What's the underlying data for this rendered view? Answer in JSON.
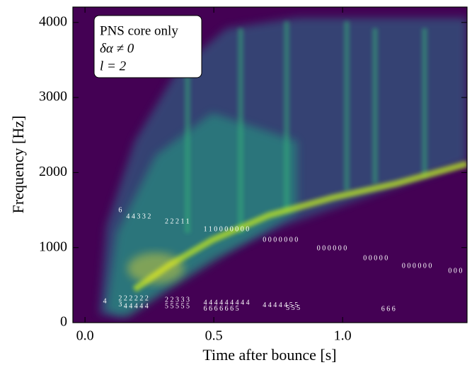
{
  "chart_data": {
    "type": "spectrogram",
    "x_label": "Time after bounce [s]",
    "y_label": "Frequency [Hz]",
    "annotation": [
      "PNS core only",
      "δα ≠ 0",
      "l = 2"
    ],
    "xlim": [
      -0.047,
      1.483
    ],
    "ylim": [
      0,
      4205
    ],
    "xticks": [
      {
        "value": 0,
        "label": "0.0"
      },
      0.5,
      {
        "value": 1,
        "label": "1.0"
      }
    ],
    "yticks": [
      0,
      1000,
      2000,
      3000,
      4000
    ],
    "mode_labels": {
      "x": [
        0.13,
        0.16,
        0.31,
        0.46,
        0.69,
        0.9,
        1.08,
        1.23,
        1.41,
        0.07,
        0.13,
        0.13,
        0.15,
        0.31,
        0.31,
        0.46,
        0.46,
        0.69,
        0.78,
        1.15
      ],
      "y": [
        1496,
        1411,
        1345,
        1242,
        1100,
        988,
        856,
        752,
        687,
        282,
        320,
        240,
        216,
        300,
        213,
        263,
        182,
        230,
        190,
        179
      ],
      "labels": [
        "6",
        "44332",
        "22211",
        "110000000",
        "0000000",
        "000000",
        "00000",
        "000000",
        "000",
        "4",
        "222222",
        "3",
        "44444",
        "22333",
        "55555",
        "444444444",
        "6666665",
        "4444455",
        "555",
        "666"
      ]
    }
  }
}
